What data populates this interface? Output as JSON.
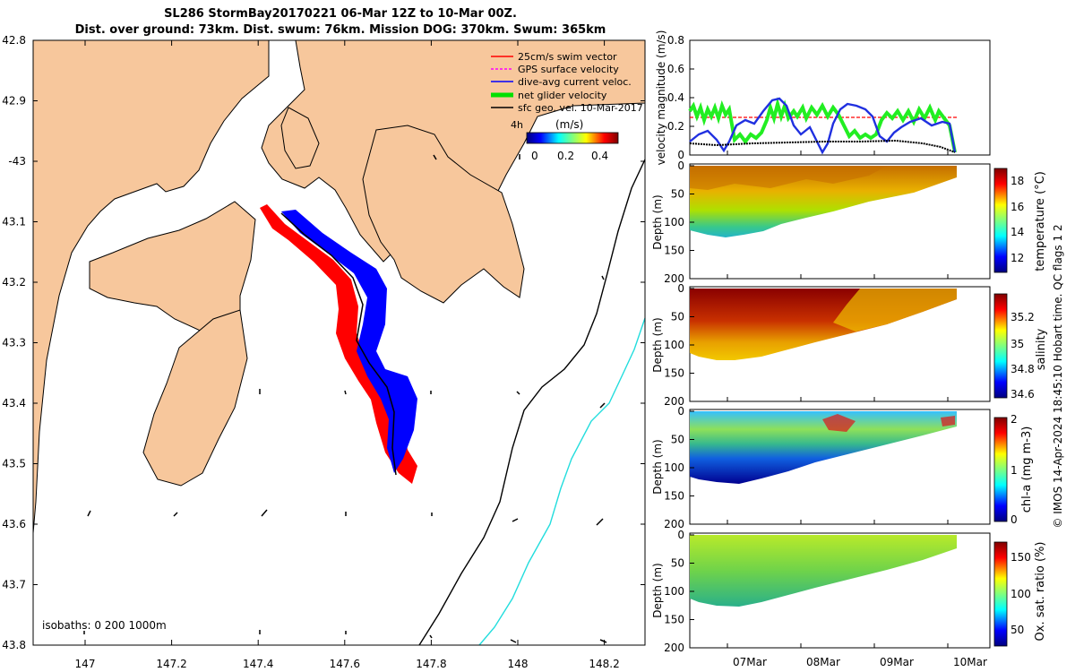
{
  "header": {
    "title_line1": "SL286 StormBay20170221 06-Mar 12Z to 10-Mar 00Z.",
    "title_line2": "Dist. over ground: 73km. Dist. swum: 76km. Mission DOG: 370km. Swum: 365km"
  },
  "map": {
    "lat_ticks": [
      "42.8",
      "42.9",
      "-43",
      "43.1",
      "43.2",
      "43.3",
      "43.4",
      "43.5",
      "43.6",
      "43.7",
      "43.8"
    ],
    "lon_ticks": [
      "147",
      "147.2",
      "147.4",
      "147.6",
      "147.8",
      "148",
      "148.2"
    ],
    "isobaths_label": "isobaths: 0   200  1000m",
    "legend": [
      {
        "label": "25cm/s swim vector",
        "color": "#ff0000"
      },
      {
        "label": "GPS surface velocity",
        "color": "#ff00ff"
      },
      {
        "label": "dive-avg current veloc.",
        "color": "#0000ff"
      },
      {
        "label": "net glider velocity",
        "color": "#00e000"
      },
      {
        "label": "sfc geo. vel. 10-Mar-2017",
        "color": "#000000"
      }
    ],
    "legend_extra": "4h",
    "colorbar_title": "(m/s)",
    "colorbar_ticks": [
      "0",
      "0.2",
      "0.4"
    ],
    "colors": {
      "land": "#f7c79c",
      "sea": "#ffffff",
      "track_red": "#ff0000",
      "track_blue": "#0000ff",
      "isobath_200": "#000000",
      "isobath_1000": "#22dddd"
    }
  },
  "panels": {
    "velocity": {
      "ylabel": "velocity magnitude (m/s)",
      "yticks": [
        "0",
        "0.2",
        "0.4",
        "0.6",
        "0.8"
      ]
    },
    "temperature": {
      "colorbar_label": "temperature (°C)",
      "colorbar_ticks": [
        "12",
        "14",
        "16",
        "18"
      ]
    },
    "salinity": {
      "colorbar_label": "salinity",
      "colorbar_ticks": [
        "34.6",
        "34.8",
        "35",
        "35.2"
      ]
    },
    "chla": {
      "colorbar_label": "chl-a (mg m-3)",
      "colorbar_ticks": [
        "0",
        "1",
        "2"
      ]
    },
    "oxygen": {
      "colorbar_label": "Ox. sat. ratio (%)",
      "colorbar_ticks": [
        "50",
        "100",
        "150"
      ]
    },
    "depth_label": "Depth (m)",
    "depth_ticks": [
      "0",
      "50",
      "100",
      "150",
      "200"
    ],
    "time_ticks": [
      "07Mar",
      "08Mar",
      "09Mar",
      "10Mar"
    ]
  },
  "footer": {
    "side_label": "© IMOS 14-Apr-2024 18:45:10 Hobart time. QC flags 1  2"
  }
}
